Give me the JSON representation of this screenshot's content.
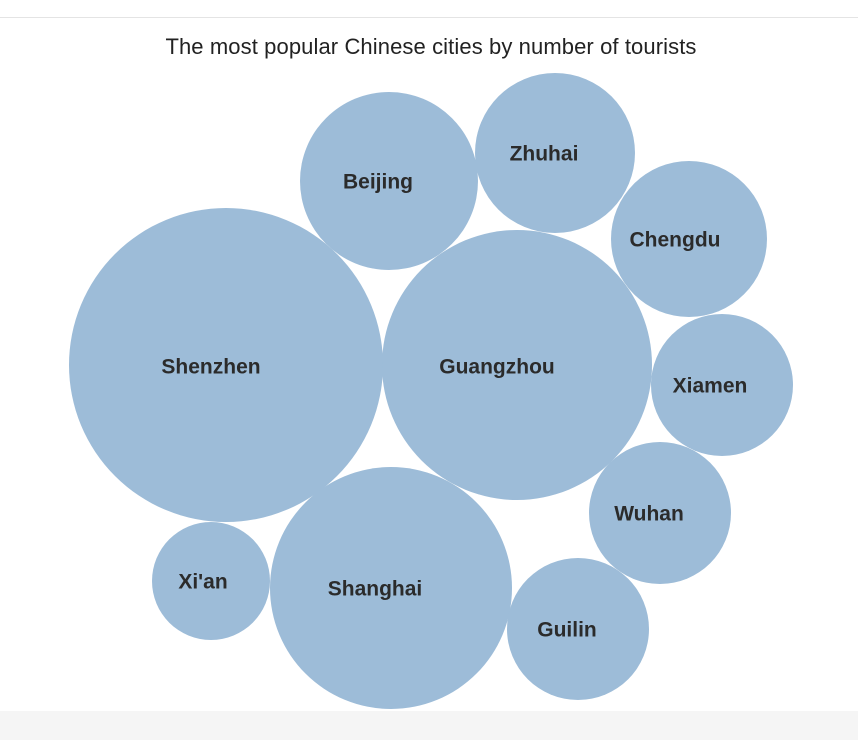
{
  "chart_data": {
    "type": "bubble",
    "title": "The most popular Chinese cities by number of tourists",
    "bubble_color": "#9dbcd8",
    "series": [
      {
        "name": "Shenzhen"
      },
      {
        "name": "Guangzhou"
      },
      {
        "name": "Shanghai"
      },
      {
        "name": "Beijing"
      },
      {
        "name": "Zhuhai"
      },
      {
        "name": "Chengdu"
      },
      {
        "name": "Xiamen"
      },
      {
        "name": "Wuhan"
      },
      {
        "name": "Guilin"
      },
      {
        "name": "Xi'an"
      }
    ]
  }
}
